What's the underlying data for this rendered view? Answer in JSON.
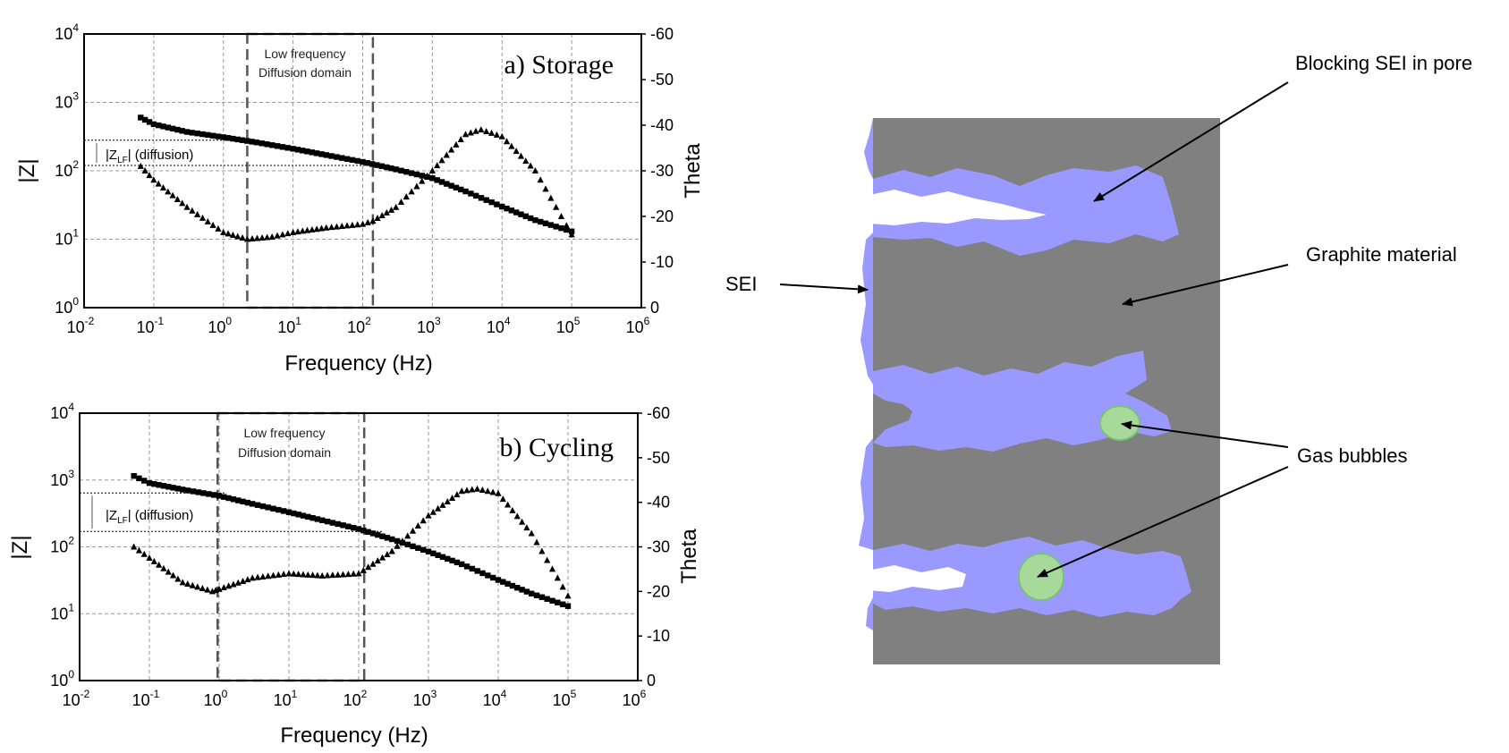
{
  "chart_data": [
    {
      "type": "scatter",
      "title": "a) Storage",
      "xlabel": "Frequency (Hz)",
      "ylabel": "|Z|",
      "y2label": "Theta",
      "xscale": "log",
      "yscale": "log",
      "xlim": [
        0.01,
        1000000
      ],
      "ylim": [
        1,
        10000
      ],
      "y2lim": [
        0,
        -60
      ],
      "grid": true,
      "x_ticks": [
        {
          "base": "10",
          "exp": "-2"
        },
        {
          "base": "10",
          "exp": "-1"
        },
        {
          "base": "10",
          "exp": "0"
        },
        {
          "base": "10",
          "exp": "1"
        },
        {
          "base": "10",
          "exp": "2"
        },
        {
          "base": "10",
          "exp": "3"
        },
        {
          "base": "10",
          "exp": "4"
        },
        {
          "base": "10",
          "exp": "5"
        },
        {
          "base": "10",
          "exp": "6"
        }
      ],
      "y_ticks": [
        {
          "base": "10",
          "exp": "0"
        },
        {
          "base": "10",
          "exp": "1"
        },
        {
          "base": "10",
          "exp": "2"
        },
        {
          "base": "10",
          "exp": "3"
        },
        {
          "base": "10",
          "exp": "4"
        }
      ],
      "y2_ticks": [
        "0",
        "-10",
        "-20",
        "-30",
        "-40",
        "-50",
        "-60"
      ],
      "annotation_box": {
        "line1": "Low frequency",
        "line2": "Diffusion domain",
        "x_range": [
          2.2,
          140
        ]
      },
      "zlf_annotation": {
        "prefix": "|Z",
        "sub": "LF",
        "suffix": "| (diffusion)",
        "upper": 280,
        "lower": 120
      },
      "series": [
        {
          "axis": "left",
          "marker": "square",
          "color": "#000000",
          "x": [
            0.065,
            0.1,
            0.3,
            1,
            3,
            10,
            30,
            100,
            300,
            1000,
            3000,
            10000,
            30000,
            100000
          ],
          "y": [
            600,
            480,
            370,
            310,
            260,
            210,
            170,
            135,
            105,
            78,
            50,
            30,
            19,
            13
          ]
        },
        {
          "axis": "right",
          "marker": "triangle",
          "color": "#000000",
          "x": [
            0.065,
            0.1,
            0.3,
            1,
            2.2,
            5,
            10,
            30,
            100,
            140,
            300,
            1000,
            3000,
            5000,
            10000,
            30000,
            100000
          ],
          "y": [
            -31,
            -28,
            -22,
            -16.5,
            -15,
            -15.5,
            -16.5,
            -17.5,
            -18.3,
            -19,
            -22,
            -30,
            -38,
            -39,
            -37.5,
            -30,
            -16
          ]
        }
      ]
    },
    {
      "type": "scatter",
      "title": "b) Cycling",
      "xlabel": "Frequency (Hz)",
      "ylabel": "|Z|",
      "y2label": "Theta",
      "xscale": "log",
      "yscale": "log",
      "xlim": [
        0.01,
        1000000
      ],
      "ylim": [
        1,
        10000
      ],
      "y2lim": [
        0,
        -60
      ],
      "grid": true,
      "x_ticks": [
        {
          "base": "10",
          "exp": "-2"
        },
        {
          "base": "10",
          "exp": "-1"
        },
        {
          "base": "10",
          "exp": "0"
        },
        {
          "base": "10",
          "exp": "1"
        },
        {
          "base": "10",
          "exp": "2"
        },
        {
          "base": "10",
          "exp": "3"
        },
        {
          "base": "10",
          "exp": "4"
        },
        {
          "base": "10",
          "exp": "5"
        },
        {
          "base": "10",
          "exp": "6"
        }
      ],
      "y_ticks": [
        {
          "base": "10",
          "exp": "0"
        },
        {
          "base": "10",
          "exp": "1"
        },
        {
          "base": "10",
          "exp": "2"
        },
        {
          "base": "10",
          "exp": "3"
        },
        {
          "base": "10",
          "exp": "4"
        }
      ],
      "y2_ticks": [
        "0",
        "-10",
        "-20",
        "-30",
        "-40",
        "-50",
        "-60"
      ],
      "annotation_box": {
        "line1": "Low frequency",
        "line2": "Diffusion domain",
        "x_range": [
          0.95,
          120
        ]
      },
      "zlf_annotation": {
        "prefix": "|Z",
        "sub": "LF",
        "suffix": "| (diffusion)",
        "upper": 640,
        "lower": 170
      },
      "series": [
        {
          "axis": "left",
          "marker": "square",
          "color": "#000000",
          "x": [
            0.06,
            0.1,
            0.3,
            1,
            3,
            10,
            30,
            100,
            300,
            1000,
            3000,
            10000,
            30000,
            100000
          ],
          "y": [
            1150,
            900,
            720,
            580,
            440,
            330,
            250,
            185,
            130,
            85,
            55,
            32,
            20,
            13
          ]
        },
        {
          "axis": "right",
          "marker": "triangle",
          "color": "#000000",
          "x": [
            0.06,
            0.1,
            0.3,
            0.8,
            1,
            3,
            10,
            30,
            100,
            300,
            1000,
            3000,
            5000,
            10000,
            30000,
            100000
          ],
          "y": [
            -30,
            -27.5,
            -22,
            -20,
            -20.5,
            -23,
            -24,
            -23.5,
            -24,
            -29,
            -37,
            -42.5,
            -43,
            -42,
            -33,
            -19
          ]
        }
      ]
    }
  ],
  "diagram": {
    "labels": {
      "blocking": "Blocking SEI in pore",
      "graphite": "Graphite material",
      "sei": "SEI",
      "gas": "Gas bubbles"
    },
    "colors": {
      "graphite": "#808080",
      "sei": "#9999ff",
      "bubble": "#a6d99a",
      "bubble_edge": "#7cc07a"
    }
  }
}
